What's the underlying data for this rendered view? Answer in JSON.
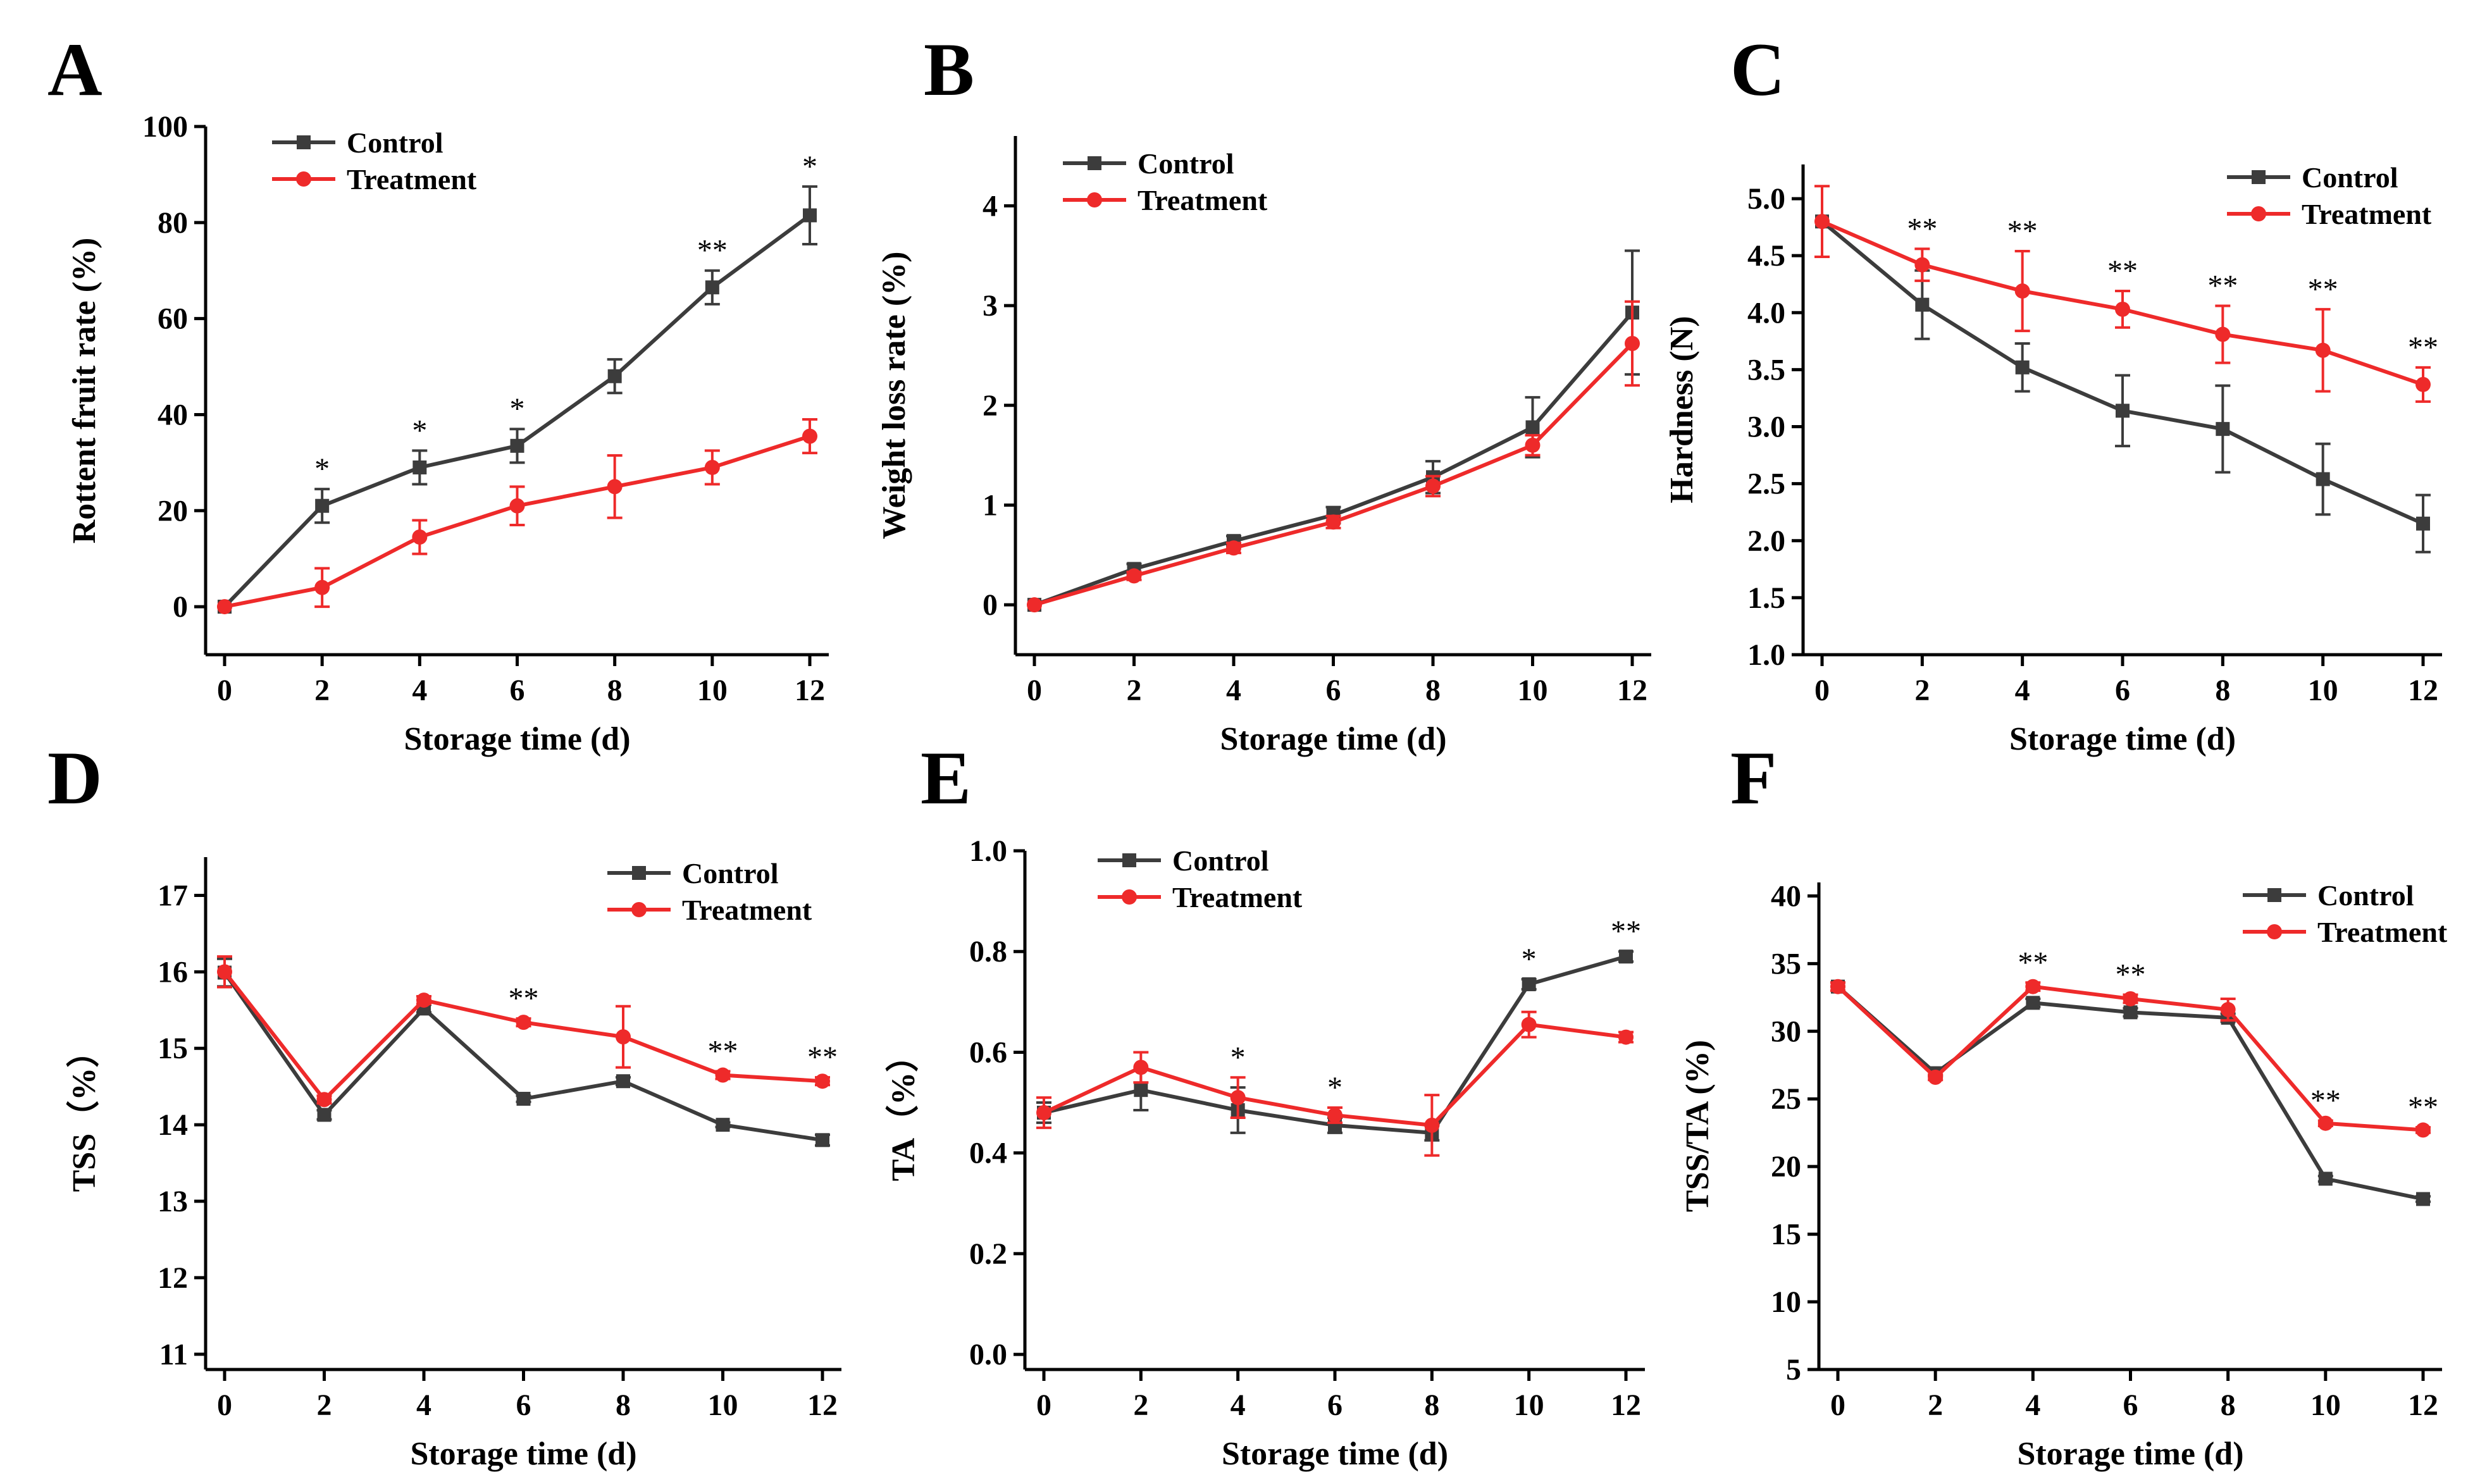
{
  "colors": {
    "control": "#3c3c3c",
    "treatment": "#ee2a2a"
  },
  "chart_data": [
    {
      "id": "A",
      "panel_label": "A",
      "type": "line",
      "xlabel": "Storage time (d)",
      "ylabel": "Rottent fruit rate (%)",
      "x": [
        0,
        2,
        4,
        6,
        8,
        10,
        12
      ],
      "xticks": [
        "0",
        "2",
        "4",
        "6",
        "8",
        "10",
        "12"
      ],
      "ylim": [
        -10,
        100
      ],
      "yticks": [
        0,
        20,
        40,
        60,
        80,
        100
      ],
      "ytick_labels": [
        "0",
        "20",
        "40",
        "60",
        "80",
        "100"
      ],
      "legend": {
        "position": "top-left",
        "control_label": "Control",
        "treatment_label": "Treatment"
      },
      "series": [
        {
          "name": "Control",
          "marker": "square",
          "values": [
            0,
            21,
            29,
            33.5,
            48,
            66.5,
            81.5
          ],
          "errors": [
            0,
            3.5,
            3.5,
            3.5,
            3.5,
            3.5,
            6
          ]
        },
        {
          "name": "Treatment",
          "marker": "circle",
          "values": [
            0,
            4,
            14.5,
            21,
            25,
            29,
            35.5
          ],
          "errors": [
            0,
            4,
            3.5,
            4,
            6.5,
            3.5,
            3.5
          ]
        }
      ],
      "annotations": [
        "",
        "*",
        "*",
        "*",
        "",
        "**",
        "*"
      ]
    },
    {
      "id": "B",
      "panel_label": "B",
      "type": "line",
      "xlabel": "Storage time (d)",
      "ylabel": "Weight loss rate (%)",
      "x": [
        0,
        2,
        4,
        6,
        8,
        10,
        12
      ],
      "xticks": [
        "0",
        "2",
        "4",
        "6",
        "8",
        "10",
        "12"
      ],
      "ylim": [
        -0.5,
        4.7
      ],
      "yticks": [
        0,
        1,
        2,
        3,
        4
      ],
      "ytick_labels": [
        "0",
        "1",
        "2",
        "3",
        "4"
      ],
      "legend": {
        "position": "top-left",
        "control_label": "Control",
        "treatment_label": "Treatment"
      },
      "series": [
        {
          "name": "Control",
          "marker": "square",
          "values": [
            0,
            0.36,
            0.64,
            0.9,
            1.28,
            1.78,
            2.93
          ],
          "errors": [
            0,
            0.05,
            0.05,
            0.08,
            0.16,
            0.3,
            0.62
          ]
        },
        {
          "name": "Treatment",
          "marker": "circle",
          "values": [
            0,
            0.29,
            0.57,
            0.83,
            1.19,
            1.6,
            2.62
          ],
          "errors": [
            0,
            0.04,
            0.05,
            0.06,
            0.1,
            0.1,
            0.42
          ]
        }
      ],
      "annotations": [
        "",
        "",
        "",
        "",
        "",
        "",
        ""
      ]
    },
    {
      "id": "C",
      "panel_label": "C",
      "type": "line",
      "xlabel": "Storage time (d)",
      "ylabel": "Hardness (N)",
      "x": [
        0,
        2,
        4,
        6,
        8,
        10,
        12
      ],
      "xticks": [
        "0",
        "2",
        "4",
        "6",
        "8",
        "10",
        "12"
      ],
      "ylim": [
        1.0,
        5.3
      ],
      "yticks": [
        1.0,
        1.5,
        2.0,
        2.5,
        3.0,
        3.5,
        4.0,
        4.5,
        5.0
      ],
      "ytick_labels": [
        "1.0",
        "1.5",
        "2.0",
        "2.5",
        "3.0",
        "3.5",
        "4.0",
        "4.5",
        "5.0"
      ],
      "legend": {
        "position": "top-right",
        "control_label": "Control",
        "treatment_label": "Treatment"
      },
      "series": [
        {
          "name": "Control",
          "marker": "square",
          "values": [
            4.8,
            4.07,
            3.52,
            3.14,
            2.98,
            2.54,
            2.15
          ],
          "errors": [
            0,
            0.3,
            0.21,
            0.31,
            0.38,
            0.31,
            0.25
          ]
        },
        {
          "name": "Treatment",
          "marker": "circle",
          "values": [
            4.8,
            4.42,
            4.19,
            4.03,
            3.81,
            3.67,
            3.37
          ],
          "errors": [
            0.31,
            0.14,
            0.35,
            0.16,
            0.25,
            0.36,
            0.15
          ]
        }
      ],
      "annotations": [
        "",
        "**",
        "**",
        "**",
        "**",
        "**",
        "**"
      ]
    },
    {
      "id": "D",
      "panel_label": "D",
      "type": "line",
      "xlabel": "Storage time (d)",
      "ylabel": "TSS（%）",
      "x": [
        0,
        2,
        4,
        6,
        8,
        10,
        12
      ],
      "xticks": [
        "0",
        "2",
        "4",
        "6",
        "8",
        "10",
        "12"
      ],
      "ylim": [
        10.8,
        17.5
      ],
      "yticks": [
        11,
        12,
        13,
        14,
        15,
        16,
        17
      ],
      "ytick_labels": [
        "11",
        "12",
        "13",
        "14",
        "15",
        "16",
        "17"
      ],
      "legend": {
        "position": "top-right",
        "control_label": "Control",
        "treatment_label": "Treatment"
      },
      "series": [
        {
          "name": "Control",
          "marker": "square",
          "values": [
            15.99,
            14.13,
            15.52,
            14.34,
            14.57,
            14.0,
            13.8
          ],
          "errors": [
            0.18,
            0.06,
            0.05,
            0.04,
            0.05,
            0.03,
            0.07
          ]
        },
        {
          "name": "Treatment",
          "marker": "circle",
          "values": [
            16.0,
            14.33,
            15.63,
            15.34,
            15.15,
            14.65,
            14.57
          ],
          "errors": [
            0.2,
            0.05,
            0.05,
            0.05,
            0.4,
            0.05,
            0.05
          ]
        }
      ],
      "annotations": [
        "",
        "",
        "",
        "**",
        "",
        "**",
        "**"
      ]
    },
    {
      "id": "E",
      "panel_label": "E",
      "type": "line",
      "xlabel": "Storage time (d)",
      "ylabel": "TA（%）",
      "x": [
        0,
        2,
        4,
        6,
        8,
        10,
        12
      ],
      "xticks": [
        "0",
        "2",
        "4",
        "6",
        "8",
        "10",
        "12"
      ],
      "ylim": [
        -0.03,
        1.0
      ],
      "yticks": [
        0.0,
        0.2,
        0.4,
        0.6,
        0.8,
        1.0
      ],
      "ytick_labels": [
        "0.0",
        "0.2",
        "0.4",
        "0.6",
        "0.8",
        "1.0"
      ],
      "legend": {
        "position": "top-left",
        "control_label": "Control",
        "treatment_label": "Treatment"
      },
      "series": [
        {
          "name": "Control",
          "marker": "square",
          "values": [
            0.48,
            0.525,
            0.485,
            0.455,
            0.44,
            0.735,
            0.79
          ],
          "errors": [
            0.02,
            0.04,
            0.045,
            0.015,
            0.015,
            0.01,
            0.01
          ]
        },
        {
          "name": "Treatment",
          "marker": "circle",
          "values": [
            0.48,
            0.57,
            0.51,
            0.475,
            0.455,
            0.655,
            0.63
          ],
          "errors": [
            0.03,
            0.03,
            0.04,
            0.015,
            0.06,
            0.025,
            0.01
          ]
        }
      ],
      "annotations": [
        "",
        "",
        "*",
        "*",
        "",
        "*",
        "**"
      ]
    },
    {
      "id": "F",
      "panel_label": "F",
      "type": "line",
      "xlabel": "Storage time (d)",
      "ylabel": "TSS/TA (%)",
      "x": [
        0,
        2,
        4,
        6,
        8,
        10,
        12
      ],
      "xticks": [
        "0",
        "2",
        "4",
        "6",
        "8",
        "10",
        "12"
      ],
      "ylim": [
        5,
        41
      ],
      "yticks": [
        5,
        10,
        15,
        20,
        25,
        30,
        35,
        40
      ],
      "ytick_labels": [
        "5",
        "10",
        "15",
        "20",
        "25",
        "30",
        "35",
        "40"
      ],
      "legend": {
        "position": "top-right",
        "control_label": "Control",
        "treatment_label": "Treatment"
      },
      "series": [
        {
          "name": "Control",
          "marker": "square",
          "values": [
            33.3,
            26.9,
            32.1,
            31.4,
            31.0,
            19.1,
            17.6
          ],
          "errors": [
            0.3,
            0.2,
            0.3,
            0.3,
            0.3,
            0.2,
            0.2
          ]
        },
        {
          "name": "Treatment",
          "marker": "circle",
          "values": [
            33.3,
            26.6,
            33.3,
            32.4,
            31.6,
            23.2,
            22.7
          ],
          "errors": [
            0.3,
            0.2,
            0.3,
            0.3,
            0.8,
            0.2,
            0.2
          ]
        }
      ],
      "annotations": [
        "",
        "",
        "**",
        "**",
        "",
        "**",
        "**"
      ]
    }
  ]
}
